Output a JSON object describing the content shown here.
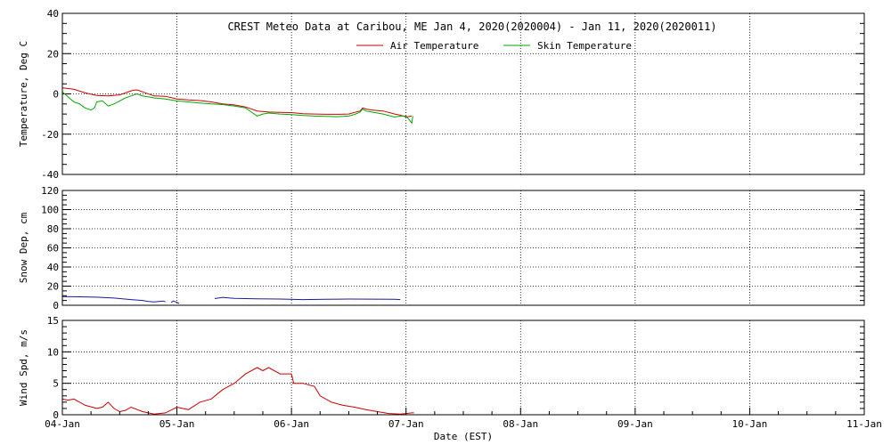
{
  "chart_data": {
    "type": "line",
    "title": "CREST Meteo Data at Caribou, ME   Jan  4, 2020(2020004) - Jan 11, 2020(2020011)",
    "xlabel": "Date (EST)",
    "x_ticks": [
      "04-Jan",
      "05-Jan",
      "06-Jan",
      "07-Jan",
      "08-Jan",
      "09-Jan",
      "10-Jan",
      "11-Jan"
    ],
    "xlim_days": [
      0,
      7
    ],
    "grid": true,
    "panels": [
      {
        "id": "temperature",
        "ylabel": "Temperature, Deg C",
        "ylim": [
          -40,
          40
        ],
        "yticks": [
          -40,
          -20,
          0,
          20,
          40
        ],
        "minor_step": 5,
        "legend": "top-center",
        "series": [
          {
            "name": "Air Temperature",
            "color": "#cc0000",
            "points": [
              [
                0,
                3
              ],
              [
                0.1,
                2.3
              ],
              [
                0.2,
                0.5
              ],
              [
                0.3,
                -0.8
              ],
              [
                0.4,
                -1
              ],
              [
                0.5,
                -0.5
              ],
              [
                0.55,
                0.5
              ],
              [
                0.6,
                1.5
              ],
              [
                0.62,
                1.8
              ],
              [
                0.65,
                2
              ],
              [
                0.7,
                1
              ],
              [
                0.8,
                -1
              ],
              [
                0.9,
                -1.2
              ],
              [
                1,
                -2.5
              ],
              [
                1.1,
                -3
              ],
              [
                1.2,
                -3.3
              ],
              [
                1.3,
                -4
              ],
              [
                1.4,
                -5
              ],
              [
                1.5,
                -5.5
              ],
              [
                1.6,
                -6.5
              ],
              [
                1.7,
                -8.5
              ],
              [
                1.8,
                -9
              ],
              [
                1.9,
                -9.2
              ],
              [
                2,
                -9.3
              ],
              [
                2.1,
                -9.8
              ],
              [
                2.2,
                -10
              ],
              [
                2.3,
                -10.1
              ],
              [
                2.4,
                -10.1
              ],
              [
                2.5,
                -10
              ],
              [
                2.55,
                -9.2
              ],
              [
                2.6,
                -8.5
              ],
              [
                2.62,
                -7
              ],
              [
                2.65,
                -7.5
              ],
              [
                2.7,
                -8
              ],
              [
                2.8,
                -8.5
              ],
              [
                2.9,
                -10
              ],
              [
                2.95,
                -10.5
              ],
              [
                3,
                -11.5
              ],
              [
                3.05,
                -11
              ]
            ]
          },
          {
            "name": "Skin Temperature",
            "color": "#00aa00",
            "points": [
              [
                0,
                1
              ],
              [
                0.05,
                -1.5
              ],
              [
                0.1,
                -4
              ],
              [
                0.15,
                -5
              ],
              [
                0.2,
                -7
              ],
              [
                0.25,
                -8
              ],
              [
                0.28,
                -7
              ],
              [
                0.3,
                -4
              ],
              [
                0.35,
                -3.5
              ],
              [
                0.4,
                -6
              ],
              [
                0.45,
                -5
              ],
              [
                0.5,
                -3.5
              ],
              [
                0.55,
                -2
              ],
              [
                0.6,
                -1
              ],
              [
                0.65,
                0
              ],
              [
                0.7,
                -1
              ],
              [
                0.8,
                -2
              ],
              [
                0.9,
                -2.5
              ],
              [
                1,
                -3.5
              ],
              [
                1.1,
                -4
              ],
              [
                1.2,
                -4.5
              ],
              [
                1.3,
                -5
              ],
              [
                1.4,
                -5.3
              ],
              [
                1.5,
                -6
              ],
              [
                1.6,
                -7
              ],
              [
                1.65,
                -9
              ],
              [
                1.7,
                -11
              ],
              [
                1.75,
                -10
              ],
              [
                1.8,
                -9.5
              ],
              [
                1.9,
                -10
              ],
              [
                2,
                -10.3
              ],
              [
                2.1,
                -10.7
              ],
              [
                2.2,
                -11
              ],
              [
                2.3,
                -11.2
              ],
              [
                2.4,
                -11.3
              ],
              [
                2.5,
                -11
              ],
              [
                2.55,
                -10.2
              ],
              [
                2.6,
                -9
              ],
              [
                2.62,
                -7.5
              ],
              [
                2.65,
                -8.5
              ],
              [
                2.7,
                -9
              ],
              [
                2.8,
                -10
              ],
              [
                2.9,
                -11.5
              ],
              [
                2.95,
                -11
              ],
              [
                3,
                -11
              ],
              [
                3.03,
                -13
              ],
              [
                3.05,
                -14.5
              ],
              [
                3.06,
                -11
              ]
            ]
          }
        ]
      },
      {
        "id": "snow_depth",
        "ylabel": "Snow Dep, cm",
        "ylim": [
          0,
          120
        ],
        "yticks": [
          0,
          20,
          40,
          60,
          80,
          100,
          120
        ],
        "minor_step": 5,
        "series": [
          {
            "color": "#1a1aa0",
            "segments": [
              [
                [
                  0,
                  9
                ],
                [
                  0.15,
                  8.8
                ],
                [
                  0.3,
                  8.5
                ],
                [
                  0.45,
                  7.5
                ],
                [
                  0.6,
                  6
                ],
                [
                  0.7,
                  5
                ],
                [
                  0.75,
                  4
                ],
                [
                  0.8,
                  3.5
                ],
                [
                  0.88,
                  4.5
                ],
                [
                  0.9,
                  3.5
                ]
              ],
              [
                [
                  0.95,
                  3
                ],
                [
                  0.97,
                  4.5
                ],
                [
                  1.0,
                  3
                ],
                [
                  1.02,
                  2
                ]
              ],
              [
                [
                  1.33,
                  7
                ],
                [
                  1.4,
                  8.3
                ],
                [
                  1.5,
                  7.2
                ],
                [
                  1.7,
                  6.8
                ],
                [
                  1.9,
                  6.5
                ],
                [
                  2.1,
                  6
                ],
                [
                  2.3,
                  6.2
                ],
                [
                  2.5,
                  6.5
                ],
                [
                  2.7,
                  6.4
                ],
                [
                  2.9,
                  6.3
                ],
                [
                  2.95,
                  6
                ]
              ]
            ]
          }
        ]
      },
      {
        "id": "wind_speed",
        "ylabel": "Wind Spd, m/s",
        "ylim": [
          0,
          15
        ],
        "yticks": [
          0,
          5,
          10,
          15
        ],
        "minor_step": 1,
        "series": [
          {
            "color": "#cc0000",
            "points": [
              [
                0,
                2.5
              ],
              [
                0.05,
                2.3
              ],
              [
                0.1,
                2.5
              ],
              [
                0.2,
                1.5
              ],
              [
                0.3,
                1
              ],
              [
                0.35,
                1.2
              ],
              [
                0.4,
                2
              ],
              [
                0.45,
                1
              ],
              [
                0.5,
                0.5
              ],
              [
                0.55,
                0.7
              ],
              [
                0.6,
                1.2
              ],
              [
                0.7,
                0.5
              ],
              [
                0.8,
                0.1
              ],
              [
                0.9,
                0.3
              ],
              [
                1,
                1.2
              ],
              [
                1.1,
                0.8
              ],
              [
                1.2,
                2
              ],
              [
                1.3,
                2.5
              ],
              [
                1.4,
                4
              ],
              [
                1.5,
                5
              ],
              [
                1.6,
                6.5
              ],
              [
                1.7,
                7.5
              ],
              [
                1.75,
                7
              ],
              [
                1.8,
                7.5
              ],
              [
                1.9,
                6.5
              ],
              [
                2,
                6.5
              ],
              [
                2.02,
                5
              ],
              [
                2.1,
                5
              ],
              [
                2.2,
                4.5
              ],
              [
                2.25,
                3
              ],
              [
                2.35,
                2
              ],
              [
                2.45,
                1.5
              ],
              [
                2.55,
                1.2
              ],
              [
                2.65,
                0.8
              ],
              [
                2.75,
                0.5
              ],
              [
                2.85,
                0.2
              ],
              [
                2.95,
                0.1
              ],
              [
                3,
                0.2
              ],
              [
                3.05,
                0.3
              ],
              [
                3.07,
                0.3
              ]
            ]
          }
        ]
      }
    ]
  }
}
